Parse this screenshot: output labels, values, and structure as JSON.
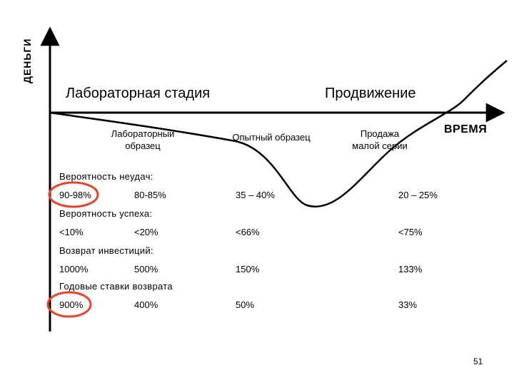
{
  "axes": {
    "y_label": "ДЕНЬГИ",
    "x_label": "ВРЕМЯ"
  },
  "stages": {
    "lab_stage": "Лабораторная стадия",
    "promotion": "Продвижение"
  },
  "substages": {
    "lab_sample_line1": "Лабораторный",
    "lab_sample_line2": "образец",
    "prototype": "Опытный образец",
    "small_series_line1": "Продажа",
    "small_series_line2": "малой серии"
  },
  "rows": [
    {
      "header": "Вероятность неудач:",
      "values": [
        "90-98%",
        "80-85%",
        "35 – 40%",
        "20 – 25%"
      ]
    },
    {
      "header": "Вероятность успеха:",
      "values": [
        "<10%",
        "<20%",
        "<66%",
        "<75%"
      ]
    },
    {
      "header": "Возврат инвестиций:",
      "values": [
        "1000%",
        "500%",
        "150%",
        "133%"
      ]
    },
    {
      "header": "Годовые ставки возврата",
      "values": [
        "900%",
        "400%",
        "50%",
        "33%"
      ]
    }
  ],
  "highlight_color": "#e8432a",
  "page_number": "51"
}
